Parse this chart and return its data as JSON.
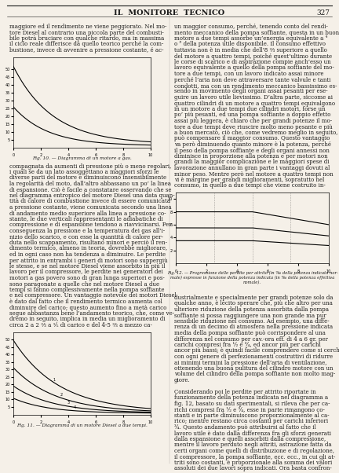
{
  "title": "IL  MONITORE  TECNICO",
  "page_number": "327",
  "background": "#f5f0e8",
  "text_color": "#1a1a1a",
  "fig10_caption": "Fig. 10. — Diagramma di un motore a gas.",
  "fig11_caption": "Fig. 11. — Diagramma di un motore Diesel a due tempi.",
  "fig12_caption": "Fig. 12. — Progressione delle perdite per attrito (in ‰ della potenza indicata nor-\nmale) espresse in funzione della potenza indicata (in ‰ della potenza effettiva\nnomale).",
  "col1_text": [
    "maggiore ed il rendimento ne viene peggiorato. Nel mo-",
    "tore Diesel al contrario una piccola parte del combusti-",
    "bile potrà bruciare con qualche ritardo, ma in massima",
    "il ciclo reale differisce da quello teorico perché la com-",
    "bustione, invece di avvenire a pressione costante, é ac-"
  ],
  "col1_text2": [
    "compagnata da aumenti di pressione più o meno regolari,",
    "i quali se da un lato assoggettano a maggiori sforzi le",
    "diverse parti del motore e diminuiscono insensibilmente",
    "la regolarità del moto, dall’altro abbassano un po’ la linea",
    "di espansione. Ciò è facile a constatare osservando che se",
    "nel diagramma entropico del motore Diesel una data quan-",
    "tità di calore di combustione invece di essere comunicata",
    "a pressione costante, viene comunicata secondo una linea",
    "di andamento medio superiore alla linea a pressione co-",
    "stante, le due verticali rappresentanti le adiabatiche di",
    "compressione e di espansione tendono a riavvicinarsi. Per",
    "conseguenza la pressione e la temperatura dei gas all’i-",
    "nizio dello scarico, e con esse la quantità di calore per-",
    "duta nello scappamento, risultano minori e perciò il ren-",
    "dimento termico, almeno in teoria, dovrebbe migliorare,",
    "ed in ogni caso non ha tendenza a diminuire. Le perdite",
    "per attrito in entrambi i generi di motori sono suppergiù",
    "le stesse, e se nel motore Diesel viene assorbito in più il",
    "lavoro per il compressore, le perdite nei generatori dei",
    "motori a gas povero sono di gran lunga superiori e pos-",
    "sono paragonate a quelle che nel motore Diesel a due",
    "tempi si fanno complessivamente nella pompa soffiante",
    "e nel compressore. Un vantaggio notevole dei motori Diesel",
    "è dato dal fatto che il rendimento termico aumenta col",
    "diminuire del carico; questo aumento fino a metà carico",
    "segue abbastanza bene l’andamento teorico, che, come ve-",
    "dremo in seguito, implica in media un miglioramento di",
    "circa 2 a 2 ⅔ a ⅕ di carico e del 4-5 ⅔ a mezzo ca-"
  ],
  "col2_text": [
    "un maggior consumo, perché, tenendo conto del rendi-",
    "mento meccanico della pompa soffiante, questa in un buon",
    "motore a due tempi assorbe un’energia equivalente a ⁴",
    "o ⁵ della potenza utile disponibile. Il consumo effettivo",
    "tuttavia non è in media che dell’8 ⅔ superiore a quello",
    "del motore a quattro tempi, poiché quest’ultimo durante",
    "le corse di scarico e di aspirazione compie anch’esso un",
    "lavoro equivalente a quello della pompa soffiante del mo-",
    "tore a due tempi, con un lavoro indicato assai minore",
    "perché l’aria non deve attraversare tante valvule e tanti",
    "condotti, ma con un rendimento meccanico bassissimo es-",
    "sendo in movimento degli organi assai pesanti per ese-",
    "guire un lavoro utile lievissimo. D’altra parte, siccome ai",
    "quattro cilindri di un motore a quattro tempi equivalgono",
    "in un motore a due tempi due cilindri motori, forse un",
    "po’ più pesanti, ed una pompa soffiante a doppio effetto",
    "assai più leggera, è chiaro che per grandi potenze il mo-",
    "tore a due tempi deve riuscire molto meno pesante e più",
    "a buon mercato, ciò che, come vedremo meglio in seguito,",
    "può compensare il maggior consumo. Questo vantaggio",
    "va però diminuendo quanto minore è la potenza, perché",
    "il peso della pompa soffiante e degli organi annessi non",
    "diminisce in proporzione alla potenza e per motori non",
    "grandi la maggior complicazione e le maggiori spese di",
    "lavorazione annullano in gran parte i vantaggi dovuti al",
    "minor peso. Mentre però nel motore a quattro tempi non",
    "vi è margine per grandi miglioramenti, sopratutto nel",
    "consumo, in quello a due tempi che viene costruito in-"
  ],
  "col2_text2": [
    "dustrialmente e specialmente per grandi potenze solo da",
    "qualche anno, è lecito sperare che, più che altro per una",
    "ulteriore riduzione della potenza assorbita dalla pompa",
    "soffiante si possa raggiungere una non grande ma pur",
    "sensibile riduzione nel consumo. Ad esempio, una diffe-",
    "renza di un decimo di atmosfera nella pressione indicata",
    "media della pompa soffiante può corrispondere al una",
    "differenza nel consumo per cav.-ora eff. di 4 a 6 gr. per",
    "carichi compresi fra ¹⁄₂ e ³⁄₄, ed ancor più per carichi",
    "ancor più bassi; è quindi facile comprendere come si cerchi",
    "con ogni genere di perfezionamenti costruttivi di ridurre",
    "ai minimi termini la pressione dell’aria di ventilazione,",
    "ottenendo una buona pulitura del cilindro motore con un",
    "volume del cilindro della pompa soffiante non molto mag-",
    "giore.",
    "",
    "Considerando poi le perdite per attrito riportate in",
    "funzionamento della potenza indicata nel diagramma a",
    "fig. 12, basato su dati sperimentali, si rileva che per ca-",
    "richi compresi fra ¹⁄₂ e ³⁄₄, esse in parte rimangono co-",
    "stanti e in parte diminuiscono proporzionalmente al ca-",
    "rico; mentre restano circa costanti per carichi inferiori",
    "³⁄₄. Questo andamento può attribuirsi al fatto che il",
    "lavoro utile è dato dalla differenza fra gli sforzi generati",
    "dalla espansione e quelli assorbiti dalla compressione,",
    "mentre il lavoro perduto negli attriti, astrazione fatta da",
    "certi organi come quelli di distribuzione e di regolazione,",
    "il compressore, la pompa soffiante, ecc. ecc., in cui gli at-",
    "triti sono costanti, è proporzionale alla somma dei valori",
    "assoluti dei due lavori sopra indicati. Ora basta confron-"
  ]
}
